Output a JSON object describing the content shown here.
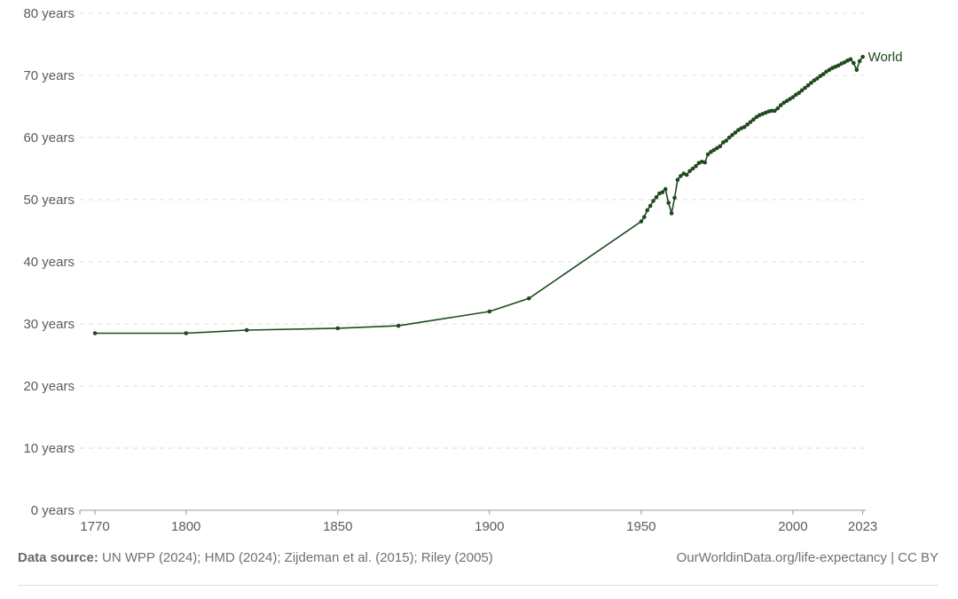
{
  "chart_data": {
    "type": "line",
    "title": "",
    "xlabel": "",
    "ylabel": "",
    "xlim": [
      1765,
      2024
    ],
    "ylim": [
      0,
      80
    ],
    "y_ticks": [
      0,
      10,
      20,
      30,
      40,
      50,
      60,
      70,
      80
    ],
    "y_tick_labels": [
      "0 years",
      "10 years",
      "20 years",
      "30 years",
      "40 years",
      "50 years",
      "60 years",
      "70 years",
      "80 years"
    ],
    "x_ticks": [
      1770,
      1800,
      1850,
      1900,
      1950,
      2000,
      2023
    ],
    "x_tick_labels": [
      "1770",
      "1800",
      "1850",
      "1900",
      "1950",
      "2000",
      "2023"
    ],
    "grid": "horizontal dashed",
    "color": "#1e4a1e",
    "series": [
      {
        "name": "World",
        "x": [
          1770,
          1800,
          1820,
          1850,
          1870,
          1900,
          1913,
          1950,
          1951,
          1952,
          1953,
          1954,
          1955,
          1956,
          1957,
          1958,
          1959,
          1960,
          1961,
          1962,
          1963,
          1964,
          1965,
          1966,
          1967,
          1968,
          1969,
          1970,
          1971,
          1972,
          1973,
          1974,
          1975,
          1976,
          1977,
          1978,
          1979,
          1980,
          1981,
          1982,
          1983,
          1984,
          1985,
          1986,
          1987,
          1988,
          1989,
          1990,
          1991,
          1992,
          1993,
          1994,
          1995,
          1996,
          1997,
          1998,
          1999,
          2000,
          2001,
          2002,
          2003,
          2004,
          2005,
          2006,
          2007,
          2008,
          2009,
          2010,
          2011,
          2012,
          2013,
          2014,
          2015,
          2016,
          2017,
          2018,
          2019,
          2020,
          2021,
          2022,
          2023
        ],
        "values": [
          28.5,
          28.5,
          29.0,
          29.3,
          29.7,
          32.0,
          34.1,
          46.5,
          47.2,
          48.3,
          49.0,
          49.8,
          50.4,
          51.0,
          51.2,
          51.7,
          49.5,
          47.8,
          50.3,
          53.2,
          53.8,
          54.2,
          54.0,
          54.6,
          55.0,
          55.4,
          55.9,
          56.1,
          56.0,
          57.3,
          57.7,
          58.0,
          58.3,
          58.6,
          59.2,
          59.5,
          60.0,
          60.4,
          60.8,
          61.2,
          61.5,
          61.7,
          62.1,
          62.5,
          62.9,
          63.3,
          63.6,
          63.8,
          64.0,
          64.2,
          64.3,
          64.3,
          64.7,
          65.2,
          65.6,
          65.9,
          66.2,
          66.5,
          66.9,
          67.2,
          67.6,
          68.0,
          68.4,
          68.8,
          69.2,
          69.5,
          69.9,
          70.2,
          70.6,
          70.9,
          71.2,
          71.4,
          71.6,
          71.9,
          72.1,
          72.4,
          72.6,
          72.0,
          70.9,
          72.3,
          73.0
        ]
      }
    ]
  },
  "footer": {
    "source_label": "Data source:",
    "source_text": " UN WPP (2024); HMD (2024); Zijdeman et al. (2015); Riley (2005)",
    "credit": "OurWorldinData.org/life-expectancy | CC BY"
  }
}
